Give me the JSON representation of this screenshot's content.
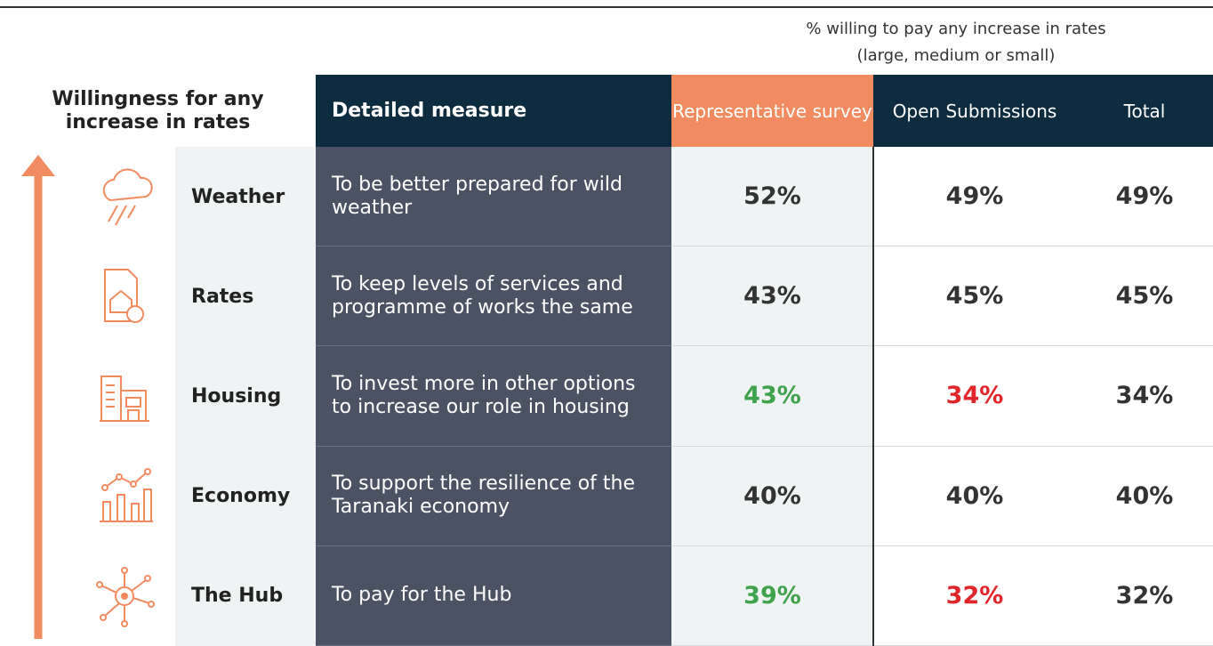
{
  "note": [
    "% willing to pay any increase in rates",
    "(large, medium or small)"
  ],
  "table": {
    "headers": [
      "Willingness for any increase in rates",
      "Detailed measure",
      "Representative survey",
      "Open Submissions",
      "Total"
    ],
    "header_colors": [
      "#ffffff",
      "#0d2c40",
      "#f28c60",
      "#0d2c40",
      "#0d2c40"
    ],
    "rows": [
      {
        "label": "Weather",
        "measure": "To be better prepared for wild weather",
        "cells": [
          {
            "text": "52%",
            "color": "#333333"
          },
          {
            "text": "49%",
            "color": "#333333"
          },
          {
            "text": "49%",
            "color": "#333333"
          }
        ]
      },
      {
        "label": "Rates",
        "measure": "To keep levels of services and programme of works the same",
        "cells": [
          {
            "text": "43%",
            "color": "#333333"
          },
          {
            "text": "45%",
            "color": "#333333"
          },
          {
            "text": "45%",
            "color": "#333333"
          }
        ]
      },
      {
        "label": "Housing",
        "measure": "To invest more in other options to increase our role in housing",
        "cells": [
          {
            "text": "43%",
            "color": "#3fa34d"
          },
          {
            "text": "34%",
            "color": "#e0262b"
          },
          {
            "text": "34%",
            "color": "#333333"
          }
        ]
      },
      {
        "label": "Economy",
        "measure": "To support the resilience of the Taranaki economy",
        "cells": [
          {
            "text": "40%",
            "color": "#333333"
          },
          {
            "text": "40%",
            "color": "#333333"
          },
          {
            "text": "40%",
            "color": "#333333"
          }
        ]
      },
      {
        "label": "The Hub",
        "measure": "To pay for the Hub",
        "cells": [
          {
            "text": "39%",
            "color": "#3fa34d"
          },
          {
            "text": "32%",
            "color": "#e0262b"
          },
          {
            "text": "32%",
            "color": "#333333"
          }
        ]
      }
    ]
  }
}
